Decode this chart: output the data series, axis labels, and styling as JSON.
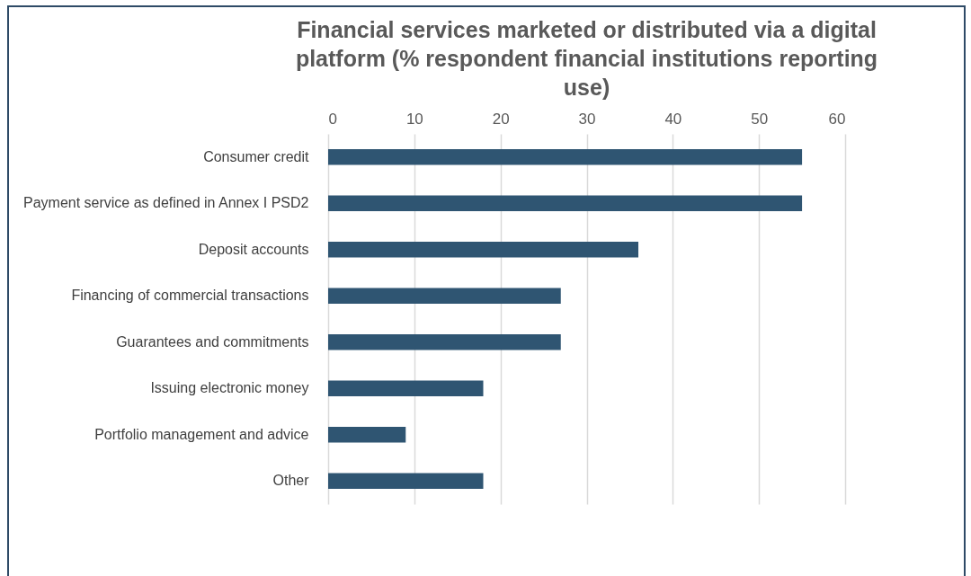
{
  "chart_data": {
    "type": "bar",
    "orientation": "horizontal",
    "title": "Financial services marketed or distributed via a digital platform (% respondent financial institutions reporting use)",
    "categories": [
      "Consumer credit",
      "Payment service as defined in Annex I PSD2",
      "Deposit accounts",
      "Financing of commercial transactions",
      "Guarantees and commitments",
      "Issuing electronic money",
      "Portfolio management and advice",
      "Other"
    ],
    "values": [
      55,
      55,
      36,
      27,
      27,
      18,
      9,
      18
    ],
    "color": "#2f5572",
    "xlim": [
      0,
      60
    ],
    "xticks": [
      0,
      10,
      20,
      30,
      40,
      50,
      60
    ],
    "grid": "x"
  }
}
